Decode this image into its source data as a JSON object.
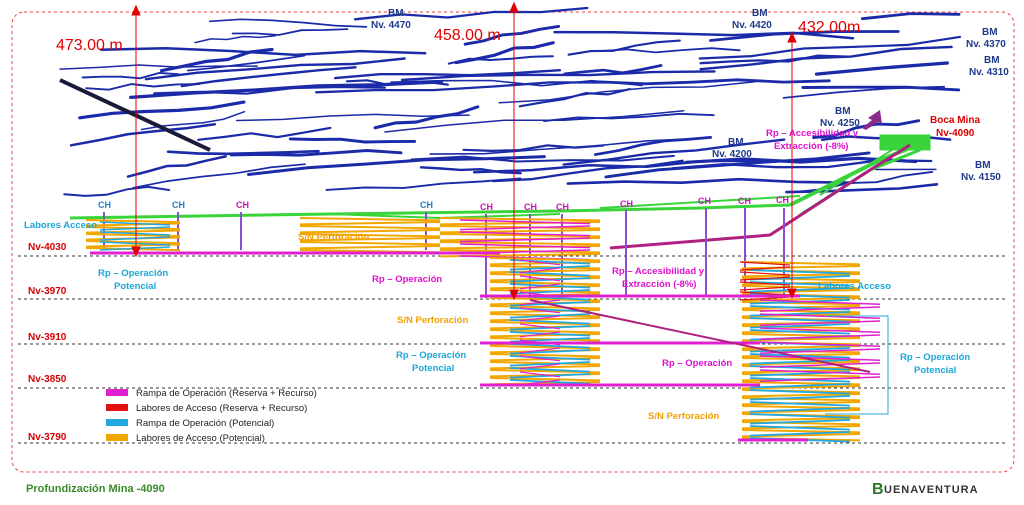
{
  "depths": {
    "left": "473.00 m",
    "middle": "458.00 m",
    "right": "432.00m"
  },
  "bm_labels": [
    {
      "top": "BM",
      "bottom": "Nv. 4470"
    },
    {
      "top": "BM",
      "bottom": "Nv. 4420"
    },
    {
      "top": "BM",
      "bottom": "Nv. 4370"
    },
    {
      "top": "BM",
      "bottom": "Nv. 4310"
    },
    {
      "top": "BM",
      "bottom": "Nv. 4250"
    },
    {
      "top": "BM",
      "bottom": "Nv. 4200"
    },
    {
      "top": "BM",
      "bottom": "Nv. 4150"
    }
  ],
  "boca_mina": {
    "line1": "Boca Mina",
    "line2": "Nv-4090"
  },
  "levels": [
    "Nv-4030",
    "Nv-3970",
    "Nv-3910",
    "Nv-3850",
    "Nv-3790"
  ],
  "ch_labels": [
    "CH",
    "CH",
    "CH",
    "CH",
    "CH",
    "CH",
    "CH",
    "CH",
    "CH",
    "CH",
    "CH"
  ],
  "annotations": {
    "rp_accesibilidad_top": {
      "line1": "Rp – Accesibilidad y",
      "line2": "Extracción (-8%)"
    },
    "rp_accesibilidad_mid": {
      "line1": "Rp – Accesibilidad y",
      "line2": "Extracción (-8%)"
    },
    "labores_acceso_left": "Labores Acceso",
    "labores_acceso_right": "Labores Acceso",
    "rp_op_pot_left": {
      "line1": "Rp – Operación",
      "line2": "Potencial"
    },
    "rp_op_pot_mid": {
      "line1": "Rp – Operación",
      "line2": "Potencial"
    },
    "rp_op_pot_right": {
      "line1": "Rp – Operación",
      "line2": "Potencial"
    },
    "sn_perf_1": "S/N Perforación",
    "sn_perf_2": "S/N Perforación",
    "sn_perf_3": "S/N Perforación",
    "rp_operacion_1": "Rp – Operación",
    "rp_operacion_2": "Rp – Operación"
  },
  "legend": [
    {
      "label": "Rampa de Operación (Reserva + Recurso)",
      "color": "#e020d0"
    },
    {
      "label": "Labores de Acceso (Reserva + Recurso)",
      "color": "#e01010"
    },
    {
      "label": "Rampa de Operación (Potencial)",
      "color": "#22a8e0"
    },
    {
      "label": "Labores de Acceso (Potencial)",
      "color": "#f2a600"
    }
  ],
  "footer": {
    "title": "Profundización Mina -4090",
    "brand": "UENAVENTURA",
    "brand_initial": "B"
  },
  "colors": {
    "frame": "#e04040",
    "workings_blue": "#1a2aa8",
    "upper_green": "#39d43a",
    "ramp_magenta": "#e020d0",
    "access_red": "#e01010",
    "pot_cyan": "#22a8e0",
    "pot_orange": "#f2a600",
    "ch_purple": "#8a4fd0",
    "depth_arrow": "#e00000"
  }
}
